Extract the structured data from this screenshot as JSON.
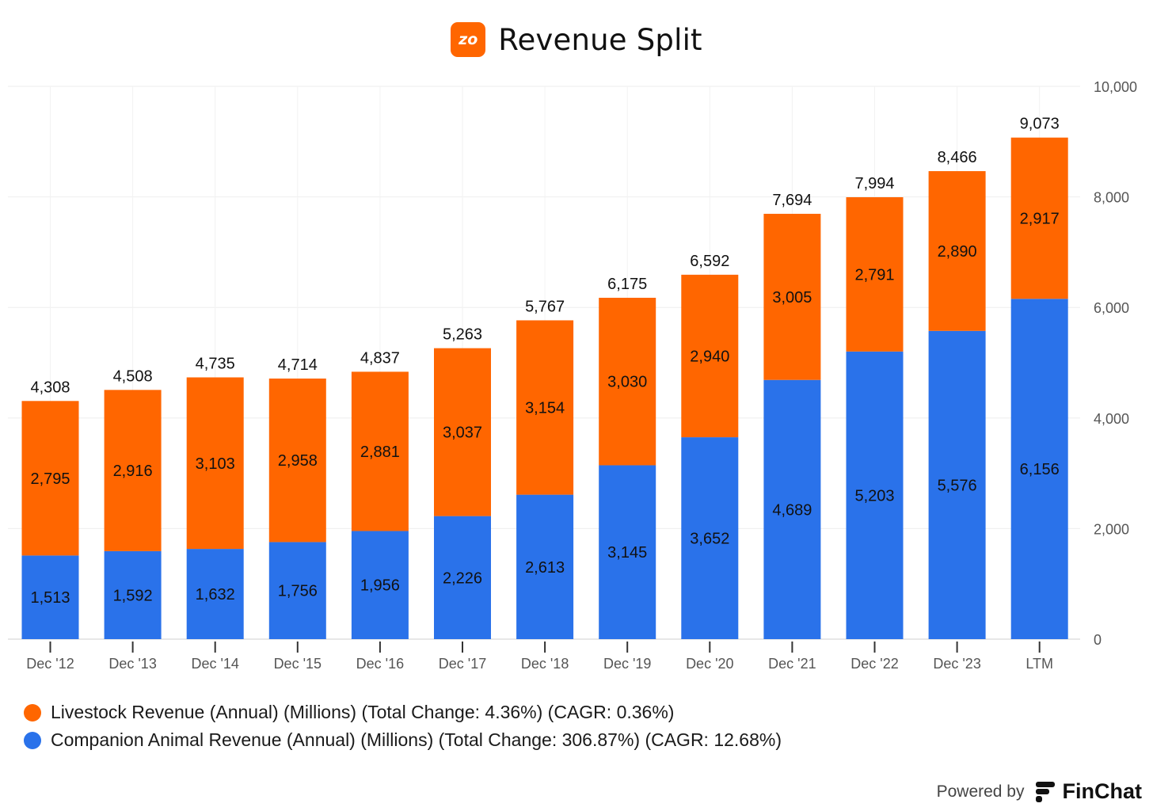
{
  "header": {
    "logo_text": "zo",
    "title": "Revenue Split"
  },
  "colors": {
    "livestock": "#ff6600",
    "companion": "#2a72ea",
    "accent": "#ff6600"
  },
  "chart_data": {
    "type": "bar",
    "stacked": true,
    "title": "Revenue Split",
    "categories": [
      "Dec '12",
      "Dec '13",
      "Dec '14",
      "Dec '15",
      "Dec '16",
      "Dec '17",
      "Dec '18",
      "Dec '19",
      "Dec '20",
      "Dec '21",
      "Dec '22",
      "Dec '23",
      "LTM"
    ],
    "series": [
      {
        "name": "Companion Animal Revenue (Annual) (Millions) (Total Change: 306.87%) (CAGR: 12.68%)",
        "color": "#2a72ea",
        "values": [
          1513,
          1592,
          1632,
          1756,
          1956,
          2226,
          2613,
          3145,
          3652,
          4689,
          5203,
          5576,
          6156
        ]
      },
      {
        "name": "Livestock Revenue (Annual) (Millions) (Total Change: 4.36%) (CAGR: 0.36%)",
        "color": "#ff6600",
        "values": [
          2795,
          2916,
          3103,
          2958,
          2881,
          3037,
          3154,
          3030,
          2940,
          3005,
          2791,
          2890,
          2917
        ]
      }
    ],
    "totals": [
      4308,
      4508,
      4735,
      4714,
      4837,
      5263,
      5767,
      6175,
      6592,
      7694,
      7994,
      8466,
      9073
    ],
    "ylim": [
      0,
      10000
    ],
    "yticks": [
      "0",
      "2,000",
      "4,000",
      "6,000",
      "8,000",
      "10,000"
    ],
    "y_axis_side": "right",
    "grid": true,
    "legend_position": "bottom-left"
  },
  "legend": {
    "items": [
      {
        "label": "Livestock Revenue (Annual) (Millions) (Total Change: 4.36%) (CAGR: 0.36%)",
        "color": "#ff6600"
      },
      {
        "label": "Companion Animal Revenue (Annual) (Millions) (Total Change: 306.87%) (CAGR: 12.68%)",
        "color": "#2a72ea"
      }
    ]
  },
  "footer": {
    "powered_by": "Powered by",
    "brand": "FinChat",
    "brand_icon": "finchat-logo-icon"
  }
}
